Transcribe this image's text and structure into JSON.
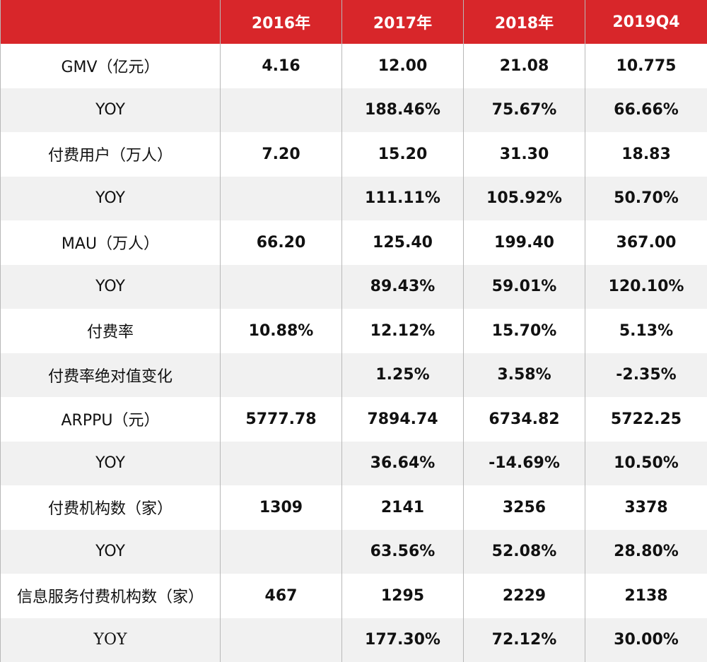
{
  "table": {
    "columns": [
      "",
      "2016年",
      "2017年",
      "2018年",
      "2019Q4"
    ],
    "rows": [
      {
        "label": "GMV（亿元）",
        "values": [
          "4.16",
          "12.00",
          "21.08",
          "10.775"
        ]
      },
      {
        "label": "YOY",
        "values": [
          "",
          "188.46%",
          "75.67%",
          "66.66%"
        ]
      },
      {
        "label": "付费用户（万人）",
        "values": [
          "7.20",
          "15.20",
          "31.30",
          "18.83"
        ]
      },
      {
        "label": "YOY",
        "values": [
          "",
          "111.11%",
          "105.92%",
          "50.70%"
        ]
      },
      {
        "label": "MAU（万人）",
        "values": [
          "66.20",
          "125.40",
          "199.40",
          "367.00"
        ]
      },
      {
        "label": "YOY",
        "values": [
          "",
          "89.43%",
          "59.01%",
          "120.10%"
        ]
      },
      {
        "label": "付费率",
        "values": [
          "10.88%",
          "12.12%",
          "15.70%",
          "5.13%"
        ]
      },
      {
        "label": "付费率绝对值变化",
        "values": [
          "",
          "1.25%",
          "3.58%",
          "-2.35%"
        ]
      },
      {
        "label": "ARPPU（元）",
        "values": [
          "5777.78",
          "7894.74",
          "6734.82",
          "5722.25"
        ]
      },
      {
        "label": "YOY",
        "values": [
          "",
          "36.64%",
          "-14.69%",
          "10.50%"
        ]
      },
      {
        "label": "付费机构数（家）",
        "values": [
          "1309",
          "2141",
          "3256",
          "3378"
        ]
      },
      {
        "label": "YOY",
        "values": [
          "",
          "63.56%",
          "52.08%",
          "28.80%"
        ]
      },
      {
        "label": "信息服务付费机构数（家）",
        "values": [
          "467",
          "1295",
          "2229",
          "2138"
        ]
      },
      {
        "label": "YOY",
        "values": [
          "",
          "177.30%",
          "72.12%",
          "30.00%"
        ]
      }
    ]
  },
  "colors": {
    "header_background": "#d8262a",
    "header_text": "#ffffff",
    "alt_row_background": "#f1f1f1",
    "grid_line": "#b8b8b8"
  }
}
